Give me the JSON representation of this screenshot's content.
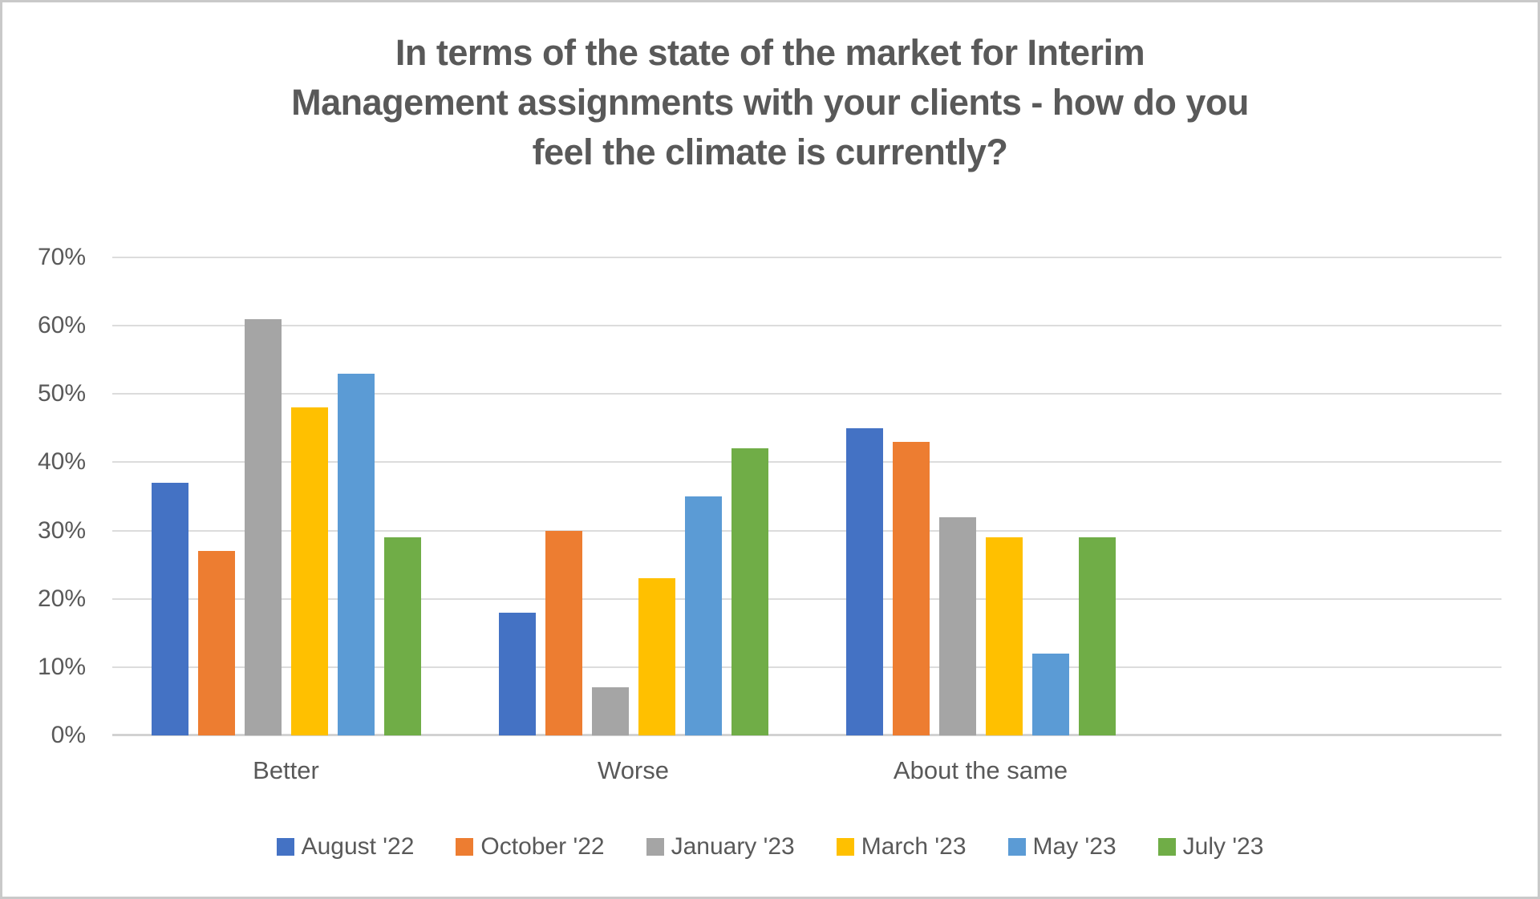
{
  "chart_data": {
    "type": "bar",
    "title": "In terms of the state of the market for Interim Management assignments with your clients - how do you feel the climate is currently?",
    "title_lines": [
      "In terms of the state of the market for Interim",
      "Management assignments with your clients - how do you",
      "feel the climate is currently?"
    ],
    "categories": [
      "Better",
      "Worse",
      "About the same"
    ],
    "series": [
      {
        "name": "August '22",
        "color": "#4472C4",
        "values": [
          37,
          18,
          45
        ]
      },
      {
        "name": "October '22",
        "color": "#ED7D31",
        "values": [
          27,
          30,
          43
        ]
      },
      {
        "name": "January '23",
        "color": "#A5A5A5",
        "values": [
          61,
          7,
          32
        ]
      },
      {
        "name": "March '23",
        "color": "#FFC000",
        "values": [
          48,
          23,
          29
        ]
      },
      {
        "name": "May '23",
        "color": "#5B9BD5",
        "values": [
          53,
          35,
          12
        ]
      },
      {
        "name": "July '23",
        "color": "#70AD47",
        "values": [
          29,
          42,
          29
        ]
      }
    ],
    "xlabel": "",
    "ylabel": "",
    "ylim": [
      0,
      70
    ],
    "ytick_labels": [
      "0%",
      "10%",
      "20%",
      "30%",
      "40%",
      "50%",
      "60%",
      "70%"
    ],
    "ytick_values": [
      0,
      10,
      20,
      30,
      40,
      50,
      60,
      70
    ],
    "grid": true,
    "legend_position": "bottom",
    "category_slots": 4,
    "title_color": "#595959",
    "text_color": "#595959",
    "gridline_color": "#dcdcdc"
  }
}
